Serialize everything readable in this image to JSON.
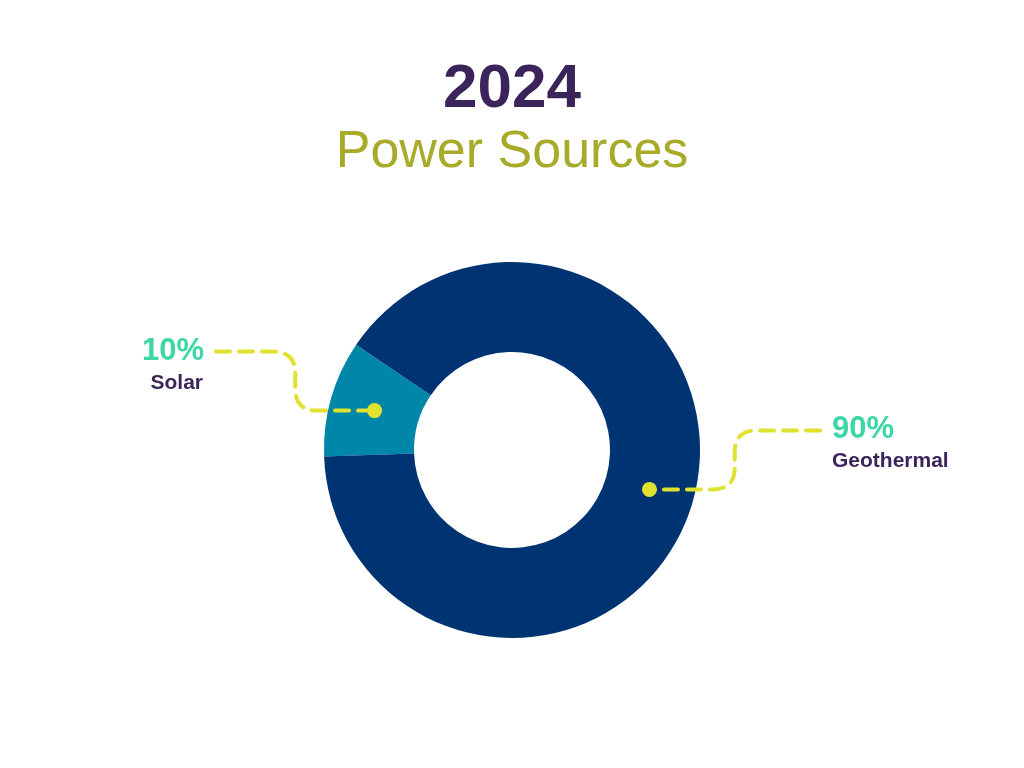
{
  "chart_data": {
    "type": "donut",
    "title": "2024",
    "subtitle": "Power Sources",
    "categories": [
      "Solar",
      "Geothermal"
    ],
    "values": [
      10,
      90
    ],
    "colors": [
      "#0086a8",
      "#003371"
    ],
    "value_labels": [
      "10%",
      "90%"
    ]
  }
}
